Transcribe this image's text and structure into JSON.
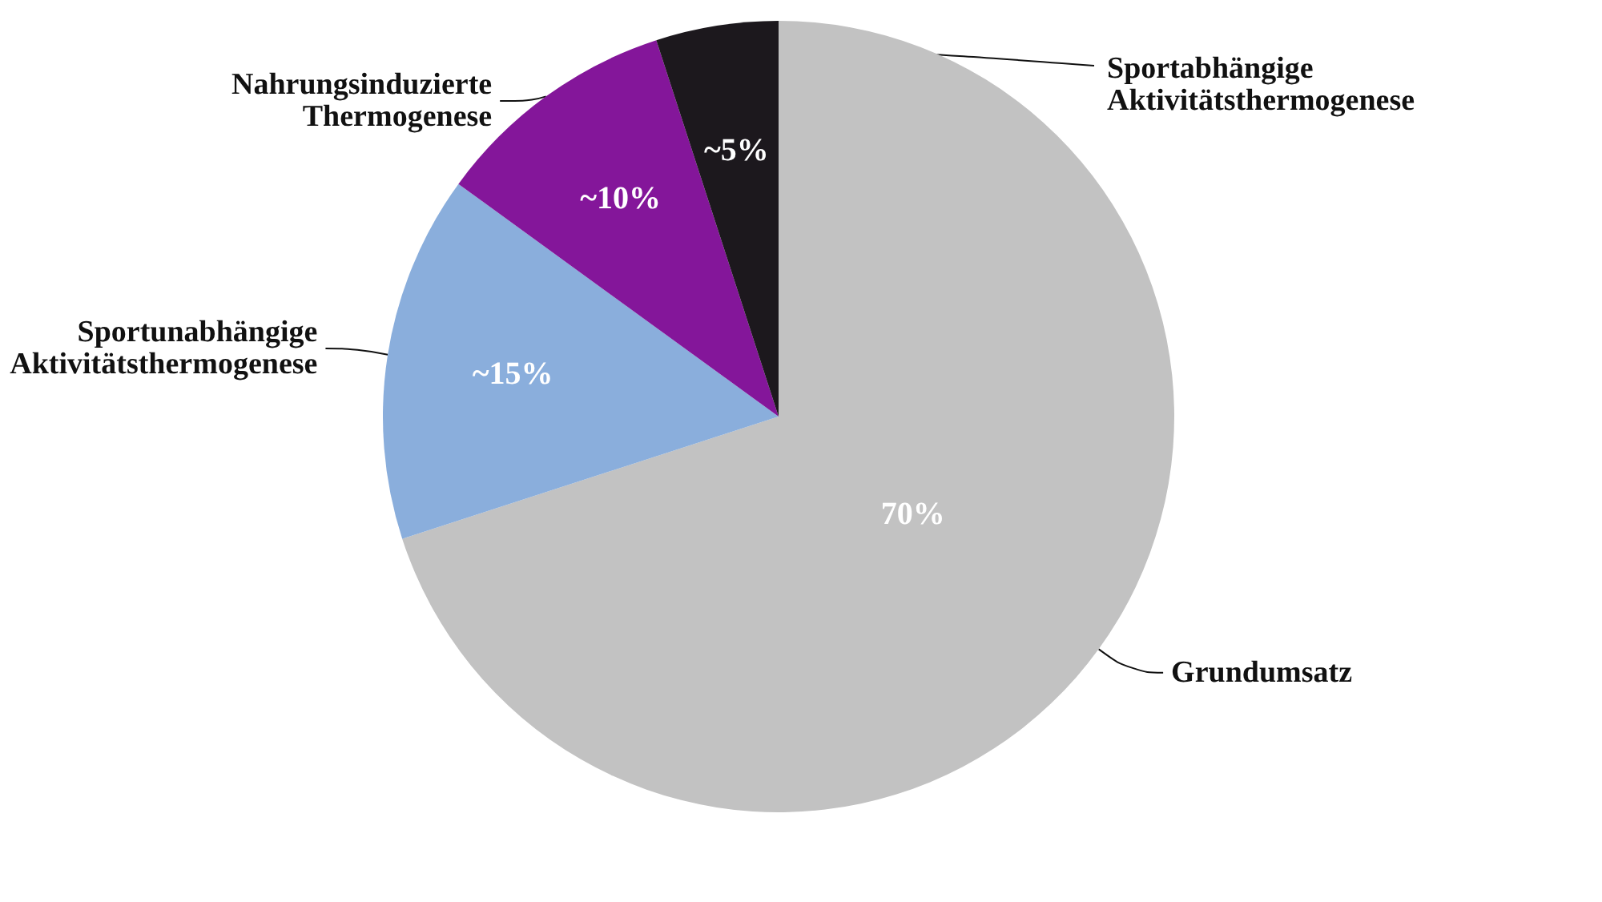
{
  "chart_data": {
    "type": "pie",
    "categories": [
      "Grundumsatz",
      "Sportunabhängige Aktivitätsthermogenese",
      "Nahrungsinduzierte Thermogenese",
      "Sportabhängige Aktivitätsthermogenese"
    ],
    "values": [
      70,
      15,
      10,
      5
    ],
    "colors": [
      "#c2c2c2",
      "#8aaedc",
      "#84169a",
      "#1c181d"
    ],
    "value_labels": [
      "70%",
      "~15%",
      "~10%",
      "~5%"
    ]
  }
}
